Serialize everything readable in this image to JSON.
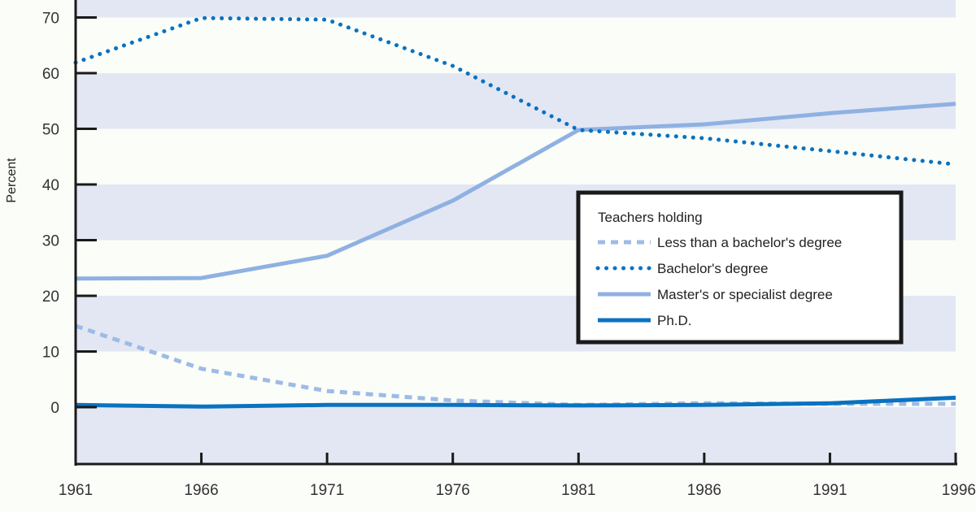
{
  "chart_data": {
    "type": "line",
    "title": "",
    "xlabel": "",
    "ylabel": "Percent",
    "x": [
      1961,
      1966,
      1971,
      1976,
      1981,
      1986,
      1991,
      1996
    ],
    "x_tick_labels": [
      "1961",
      "1966",
      "1971",
      "1976",
      "1981",
      "1986",
      "1991",
      "1996"
    ],
    "y_tick_labels": [
      "0",
      "10",
      "20",
      "30",
      "40",
      "50",
      "60",
      "70"
    ],
    "y_ticks": [
      0,
      10,
      20,
      30,
      40,
      50,
      60,
      70
    ],
    "xlim": [
      1961,
      1996
    ],
    "ylim": [
      -10,
      73
    ],
    "grid": "alternating horizontal bands",
    "legend": {
      "title": "Teachers holding",
      "placement": "right-middle"
    },
    "series": [
      {
        "name": "Less than a bachelor's degree",
        "style": "dashed",
        "color": "#9dbbe6",
        "values": [
          14.6,
          6.9,
          2.9,
          1.2,
          0.4,
          0.7,
          0.6,
          0.6
        ]
      },
      {
        "name": "Bachelor's degree",
        "style": "dotted",
        "color": "#0a72c0",
        "values": [
          61.9,
          69.9,
          69.6,
          61.3,
          49.8,
          48.3,
          46.0,
          43.6
        ]
      },
      {
        "name": "Master's or specialist degree",
        "style": "solid-light",
        "color": "#8fb1e2",
        "values": [
          23.1,
          23.2,
          27.2,
          37.1,
          49.8,
          50.8,
          52.8,
          54.5
        ]
      },
      {
        "name": "Ph.D.",
        "style": "solid-dark",
        "color": "#0a72c0",
        "values": [
          0.4,
          0.1,
          0.4,
          0.4,
          0.3,
          0.4,
          0.7,
          1.7
        ]
      }
    ]
  },
  "colors": {
    "band": "#e3e7f4",
    "background": "#fbfdf9",
    "axis": "#1a1a1a"
  }
}
